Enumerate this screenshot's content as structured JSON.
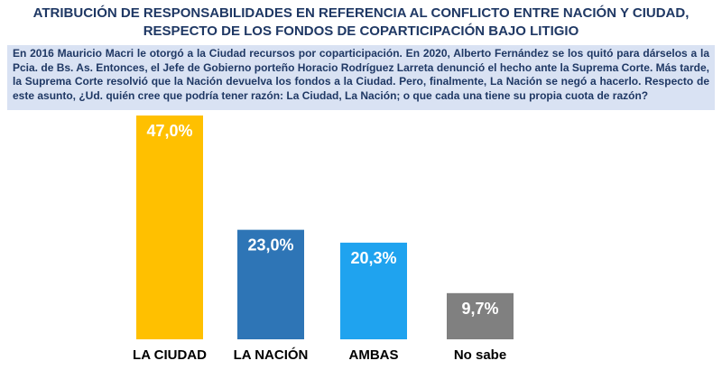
{
  "header": {
    "title_line_1": "ATRIBUCIÓN DE RESPONSABILIDADES EN REFERENCIA AL CONFLICTO ENTRE NACIÓN Y CIUDAD,",
    "title_line_2": "RESPECTO DE LOS FONDOS DE COPARTICIPACIÓN BAJO LITIGIO"
  },
  "question": {
    "text": "En 2016 Mauricio Macri le otorgó a la Ciudad recursos por coparticipación. En 2020, Alberto Fernández se los quitó para dárselos a la Pcia. de Bs. As. Entonces, el Jefe de Gobierno porteño Horacio Rodríguez Larreta denunció el hecho ante la Suprema Corte. Más tarde, la Suprema Corte resolvió que la Nación devuelva los fondos a la Ciudad. Pero, finalmente, La Nación se negó a hacerlo. Respecto de este asunto, ¿Ud. quién cree que podría tener razón: La Ciudad, La Nación; o que cada una tiene su propia cuota de razón?"
  },
  "colors": {
    "title": "#1F3864",
    "question_bg": "#D9E2F3"
  },
  "chart_data": {
    "type": "bar",
    "categories": [
      "LA CIUDAD",
      "LA NACIÓN",
      "AMBAS",
      "No sabe"
    ],
    "values": [
      47.0,
      23.0,
      20.3,
      9.7
    ],
    "data_labels": [
      "47,0%",
      "23,0%",
      "20,3%",
      "9,7%"
    ],
    "colors": [
      "#FFC000",
      "#2E75B6",
      "#1FA3EF",
      "#808080"
    ],
    "title": "",
    "xlabel": "",
    "ylabel": "",
    "ylim": [
      0,
      47.0
    ]
  }
}
